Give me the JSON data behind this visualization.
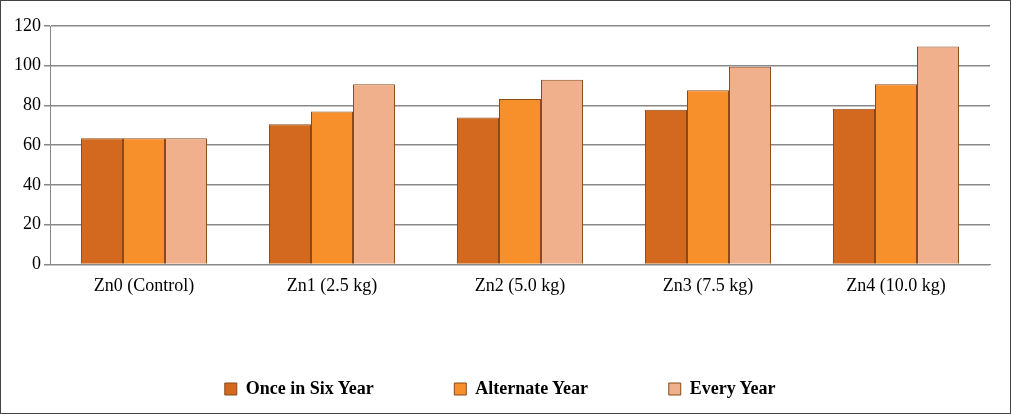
{
  "chart_data": {
    "type": "bar",
    "categories": [
      "Zn0 (Control)",
      "Zn1 (2.5 kg)",
      "Zn2 (5.0 kg)",
      "Zn3 (7.5 kg)",
      "Zn4 (10.0 kg)"
    ],
    "series": [
      {
        "name": "Once in Six Year",
        "color": "#d2691e",
        "values": [
          63.5,
          70.6,
          74,
          77.8,
          78.3
        ]
      },
      {
        "name": "Alternate Year",
        "color": "#f7902a",
        "values": [
          63.5,
          77,
          83.3,
          87.7,
          90.7
        ]
      },
      {
        "name": "Every Year",
        "color": "#f0b08c",
        "values": [
          63.5,
          90.7,
          93,
          99.5,
          109.7
        ]
      }
    ],
    "ylim": [
      0,
      120
    ],
    "yticks": [
      0,
      20,
      40,
      60,
      80,
      100,
      120
    ],
    "grid": "y",
    "legend": "bottom"
  }
}
